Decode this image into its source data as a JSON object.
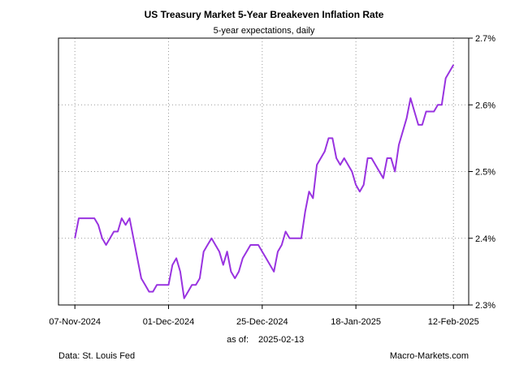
{
  "chart_data": {
    "type": "line",
    "title": "US Treasury Market 5-Year Breakeven Inflation Rate",
    "subtitle": "5-year expectations, daily",
    "xlabel": "",
    "ylabel": "",
    "ylim": [
      2.3,
      2.7
    ],
    "grid": true,
    "y_ticks": [
      {
        "value": 2.3,
        "label": "2.3%"
      },
      {
        "value": 2.4,
        "label": "2.4%"
      },
      {
        "value": 2.5,
        "label": "2.5%"
      },
      {
        "value": 2.6,
        "label": "2.6%"
      },
      {
        "value": 2.7,
        "label": "2.7%"
      }
    ],
    "x_ticks": [
      {
        "day": 0,
        "label": "07-Nov-2024"
      },
      {
        "day": 24,
        "label": "01-Dec-2024"
      },
      {
        "day": 48,
        "label": "25-Dec-2024"
      },
      {
        "day": 72,
        "label": "18-Jan-2025"
      },
      {
        "day": 97,
        "label": "12-Feb-2025"
      }
    ],
    "series": [
      {
        "name": "5-Year Breakeven Inflation Rate",
        "color": "#9933e0",
        "x": [
          0,
          1,
          4,
          5,
          6,
          7,
          8,
          9,
          10,
          11,
          12,
          13,
          14,
          15,
          16,
          17,
          18,
          19,
          20,
          21,
          22,
          23,
          24,
          25,
          26,
          27,
          28,
          29,
          30,
          31,
          32,
          33,
          34,
          35,
          36,
          37,
          38,
          39,
          40,
          41,
          42,
          43,
          44,
          45,
          46,
          47,
          48,
          49,
          50,
          51,
          52,
          53,
          54,
          55,
          56,
          57,
          58,
          59,
          60,
          61,
          62,
          63,
          64,
          65,
          66,
          67,
          68,
          69,
          70,
          71,
          72,
          73,
          74,
          75,
          76,
          77,
          78,
          79,
          80,
          81,
          82,
          83,
          84,
          85,
          86,
          87,
          88,
          89,
          90,
          91,
          92,
          93,
          94,
          95,
          96,
          97
        ],
        "values": [
          2.4,
          2.43,
          2.43,
          2.43,
          2.42,
          2.4,
          2.39,
          2.4,
          2.41,
          2.41,
          2.43,
          2.42,
          2.43,
          2.4,
          2.37,
          2.34,
          2.33,
          2.32,
          2.32,
          2.33,
          2.33,
          2.33,
          2.33,
          2.36,
          2.37,
          2.35,
          2.31,
          2.32,
          2.33,
          2.33,
          2.34,
          2.38,
          2.39,
          2.4,
          2.39,
          2.38,
          2.36,
          2.38,
          2.35,
          2.34,
          2.35,
          2.37,
          2.38,
          2.39,
          2.39,
          2.39,
          2.38,
          2.37,
          2.36,
          2.35,
          2.38,
          2.39,
          2.41,
          2.4,
          2.4,
          2.4,
          2.4,
          2.44,
          2.47,
          2.46,
          2.51,
          2.52,
          2.53,
          2.55,
          2.55,
          2.52,
          2.51,
          2.52,
          2.51,
          2.5,
          2.48,
          2.47,
          2.48,
          2.52,
          2.52,
          2.51,
          2.5,
          2.49,
          2.52,
          2.52,
          2.5,
          2.54,
          2.56,
          2.58,
          2.61,
          2.59,
          2.57,
          2.57,
          2.59,
          2.59,
          2.59,
          2.6,
          2.6,
          2.64,
          2.65,
          2.66
        ]
      }
    ]
  },
  "footer": {
    "as_of_label": "as of:",
    "as_of_date": "2025-02-13",
    "source": "Data: St. Louis Fed",
    "brand": "Macro-Markets.com"
  }
}
